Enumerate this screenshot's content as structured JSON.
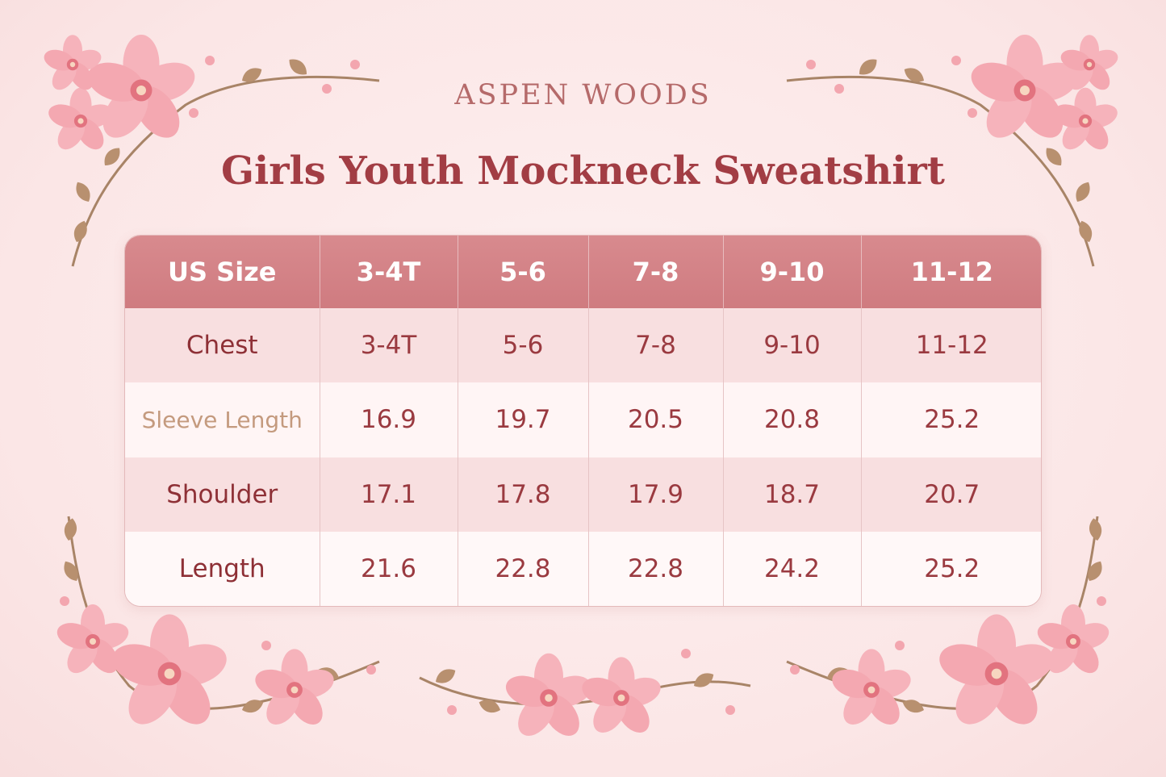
{
  "brand": "ASPEN WOODS",
  "title": "Girls Youth Mockneck Sweatshirt",
  "table": {
    "headers": [
      "US Size",
      "3-4T",
      "5-6",
      "7-8",
      "9-10",
      "11-12"
    ],
    "rows": [
      {
        "label": "Chest",
        "values": [
          "3-4T",
          "5-6",
          "7-8",
          "9-10",
          "11-12"
        ]
      },
      {
        "label": "Sleeve Length",
        "values": [
          "16.9",
          "19.7",
          "20.5",
          "20.8",
          "25.2"
        ]
      },
      {
        "label": "Shoulder",
        "values": [
          "17.1",
          "17.8",
          "17.9",
          "18.7",
          "20.7"
        ]
      },
      {
        "label": "Length",
        "values": [
          "21.6",
          "22.8",
          "22.8",
          "24.2",
          "25.2"
        ]
      }
    ]
  },
  "colors": {
    "header_bg": "#d4828a",
    "title": "#a23d44",
    "brand": "#b56a6a",
    "flower": "#f2a9b2",
    "leaf": "#b08a6a"
  }
}
